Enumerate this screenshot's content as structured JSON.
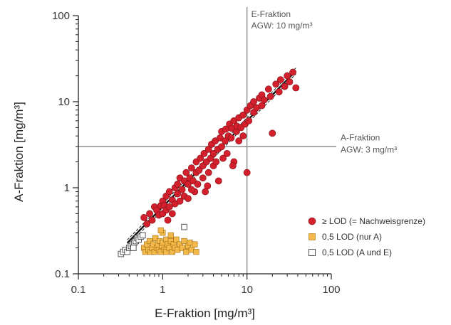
{
  "chart_data": {
    "type": "scatter",
    "title": "",
    "xlabel": "E-Fraktion [mg/m³]",
    "ylabel": "A-Fraktion [mg/m³]",
    "x_scale": "log",
    "y_scale": "log",
    "xlim": [
      0.1,
      100
    ],
    "ylim": [
      0.1,
      100
    ],
    "x_ticks": [
      {
        "value": 0.1,
        "label": "0.1"
      },
      {
        "value": 1,
        "label": "1"
      },
      {
        "value": 10,
        "label": "10"
      },
      {
        "value": 100,
        "label": "100"
      }
    ],
    "y_ticks": [
      {
        "value": 0.1,
        "label": "0.1"
      },
      {
        "value": 1,
        "label": "1"
      },
      {
        "value": 10,
        "label": "10"
      },
      {
        "value": 100,
        "label": "100"
      }
    ],
    "grid": false,
    "legend_position": "right",
    "reference_lines": [
      {
        "axis": "x",
        "value": 10,
        "label_line1": "E-Fraktion",
        "label_line2": "AGW: 10 mg/m³"
      },
      {
        "axis": "y",
        "value": 3,
        "label_line1": "A-Fraktion",
        "label_line2": "AGW: 3 mg/m³"
      }
    ],
    "regression": {
      "x_range": [
        0.38,
        38
      ],
      "y_at_x1": 0.6,
      "slope": 1.0,
      "ci_offset": 0.035
    },
    "series": [
      {
        "name": "≥ LOD (= Nachweisgrenze)",
        "marker": "circle",
        "color": "#d4202c",
        "points": [
          [
            0.6,
            0.45
          ],
          [
            0.7,
            0.5
          ],
          [
            0.75,
            0.42
          ],
          [
            0.8,
            0.6
          ],
          [
            0.85,
            0.55
          ],
          [
            0.9,
            0.48
          ],
          [
            0.95,
            0.62
          ],
          [
            1.0,
            0.5
          ],
          [
            1.0,
            0.7
          ],
          [
            1.05,
            0.62
          ],
          [
            1.1,
            0.55
          ],
          [
            1.1,
            0.8
          ],
          [
            1.2,
            0.6
          ],
          [
            1.2,
            0.9
          ],
          [
            1.3,
            0.72
          ],
          [
            1.3,
            0.5
          ],
          [
            1.4,
            1.0
          ],
          [
            1.4,
            0.65
          ],
          [
            1.5,
            0.85
          ],
          [
            1.5,
            1.1
          ],
          [
            1.6,
            0.7
          ],
          [
            1.6,
            1.3
          ],
          [
            1.7,
            0.95
          ],
          [
            1.8,
            1.2
          ],
          [
            1.8,
            0.8
          ],
          [
            1.9,
            1.5
          ],
          [
            2.0,
            1.1
          ],
          [
            2.0,
            0.75
          ],
          [
            2.1,
            1.3
          ],
          [
            2.2,
            1.7
          ],
          [
            2.3,
            1.2
          ],
          [
            2.4,
            0.9
          ],
          [
            2.5,
            1.5
          ],
          [
            2.5,
            2.0
          ],
          [
            2.6,
            1.1
          ],
          [
            2.7,
            1.6
          ],
          [
            2.8,
            2.2
          ],
          [
            3.0,
            1.8
          ],
          [
            3.0,
            1.3
          ],
          [
            3.1,
            2.5
          ],
          [
            3.2,
            0.9
          ],
          [
            3.3,
            2.0
          ],
          [
            3.5,
            2.8
          ],
          [
            3.5,
            1.5
          ],
          [
            3.7,
            2.2
          ],
          [
            3.8,
            3.2
          ],
          [
            4.0,
            2.5
          ],
          [
            4.0,
            1.8
          ],
          [
            4.2,
            3.5
          ],
          [
            4.3,
            2.0
          ],
          [
            4.5,
            2.8
          ],
          [
            4.6,
            1.2
          ],
          [
            4.8,
            3.8
          ],
          [
            5.0,
            3.0
          ],
          [
            5.0,
            4.5
          ],
          [
            5.2,
            2.2
          ],
          [
            5.5,
            3.5
          ],
          [
            5.6,
            4.8
          ],
          [
            5.8,
            2.5
          ],
          [
            6.0,
            4.0
          ],
          [
            6.2,
            5.5
          ],
          [
            6.5,
            3.8
          ],
          [
            6.6,
            4.9
          ],
          [
            7.0,
            6.0
          ],
          [
            7.0,
            2.0
          ],
          [
            7.5,
            4.5
          ],
          [
            7.6,
            5.2
          ],
          [
            8.0,
            6.5
          ],
          [
            8.0,
            3.5
          ],
          [
            8.5,
            5.0
          ],
          [
            9.0,
            7.0
          ],
          [
            9.0,
            4.0
          ],
          [
            9.5,
            5.5
          ],
          [
            10.0,
            1.5
          ],
          [
            10.0,
            8.0
          ],
          [
            10.5,
            6.0
          ],
          [
            11.0,
            9.0
          ],
          [
            12.0,
            7.5
          ],
          [
            12.0,
            10.0
          ],
          [
            13.0,
            8.5
          ],
          [
            14.0,
            11.0
          ],
          [
            15.0,
            9.0
          ],
          [
            15.0,
            12.0
          ],
          [
            16.0,
            10.5
          ],
          [
            18.0,
            14.0
          ],
          [
            19.0,
            11.5
          ],
          [
            20.0,
            4.3
          ],
          [
            22.0,
            16.0
          ],
          [
            24.0,
            13.0
          ],
          [
            25.0,
            18.0
          ],
          [
            28.0,
            15.0
          ],
          [
            30.0,
            20.0
          ],
          [
            32.0,
            17.0
          ],
          [
            35.0,
            22.0
          ],
          [
            38.0,
            14.5
          ],
          [
            0.65,
            0.38
          ],
          [
            1.15,
            0.42
          ],
          [
            2.2,
            0.95
          ],
          [
            3.4,
            1.05
          ],
          [
            6.8,
            1.8
          ]
        ]
      },
      {
        "name": "0,5 LOD (nur A)",
        "marker": "square",
        "color": "#f3b94a",
        "points": [
          [
            0.6,
            0.2
          ],
          [
            0.62,
            0.18
          ],
          [
            0.65,
            0.22
          ],
          [
            0.68,
            0.19
          ],
          [
            0.7,
            0.24
          ],
          [
            0.72,
            0.18
          ],
          [
            0.75,
            0.2
          ],
          [
            0.78,
            0.22
          ],
          [
            0.8,
            0.18
          ],
          [
            0.82,
            0.26
          ],
          [
            0.85,
            0.2
          ],
          [
            0.88,
            0.22
          ],
          [
            0.9,
            0.19
          ],
          [
            0.92,
            0.24
          ],
          [
            0.95,
            0.18
          ],
          [
            0.98,
            0.21
          ],
          [
            1.0,
            0.23
          ],
          [
            1.0,
            0.3
          ],
          [
            1.05,
            0.19
          ],
          [
            1.1,
            0.25
          ],
          [
            1.1,
            0.18
          ],
          [
            1.15,
            0.22
          ],
          [
            1.2,
            0.2
          ],
          [
            1.25,
            0.24
          ],
          [
            1.3,
            0.18
          ],
          [
            1.35,
            0.22
          ],
          [
            1.4,
            0.2
          ],
          [
            1.45,
            0.25
          ],
          [
            1.5,
            0.19
          ],
          [
            1.6,
            0.22
          ],
          [
            1.7,
            0.2
          ],
          [
            1.8,
            0.24
          ],
          [
            1.9,
            0.18
          ],
          [
            2.0,
            0.21
          ],
          [
            2.1,
            0.23
          ],
          [
            2.2,
            0.19
          ],
          [
            2.4,
            0.22
          ],
          [
            2.5,
            0.18
          ],
          [
            0.95,
            0.32
          ],
          [
            1.25,
            0.28
          ]
        ]
      },
      {
        "name": "0,5 LOD (A und E)",
        "marker": "square-open",
        "color": "#555555",
        "points": [
          [
            0.32,
            0.17
          ],
          [
            0.34,
            0.18
          ],
          [
            0.36,
            0.19
          ],
          [
            0.38,
            0.18
          ],
          [
            0.4,
            0.2
          ],
          [
            0.42,
            0.21
          ],
          [
            0.44,
            0.22
          ],
          [
            0.46,
            0.23
          ],
          [
            0.48,
            0.24
          ],
          [
            0.5,
            0.26
          ],
          [
            0.52,
            0.25
          ],
          [
            0.55,
            0.27
          ],
          [
            0.58,
            0.28
          ],
          [
            0.45,
            0.2
          ],
          [
            1.8,
            0.35
          ]
        ]
      }
    ]
  }
}
